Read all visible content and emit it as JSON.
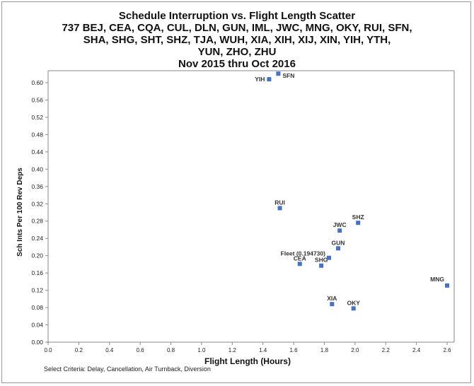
{
  "chart_data": {
    "type": "scatter",
    "title": [
      "Schedule Interruption vs. Flight Length Scatter",
      "737 BEJ, CEA, CQA, CUL, DLN, GUN, IML, JWC, MNG, OKY, RUI, SFN,",
      "SHA, SHG, SHT, SHZ, TJA, WUH, XIA, XIH, XIJ, XIN, YIH, YTH,",
      "YUN, ZHO, ZHU",
      "Nov 2015 thru Oct 2016"
    ],
    "xlabel": "Flight Length (Hours)",
    "ylabel": "Sch Ints Per 100 Rev Deps",
    "xlim": [
      0,
      2.6
    ],
    "ylim": [
      0,
      0.62
    ],
    "xticks": [
      "0.0",
      "0.2",
      "0.4",
      "0.6",
      "0.8",
      "1.0",
      "1.2",
      "1.4",
      "1.6",
      "1.8",
      "2.0",
      "2.2",
      "2.4",
      "2.6"
    ],
    "yticks": [
      "0.00",
      "0.04",
      "0.08",
      "0.12",
      "0.16",
      "0.20",
      "0.24",
      "0.28",
      "0.32",
      "0.36",
      "0.40",
      "0.44",
      "0.48",
      "0.52",
      "0.56",
      "0.60"
    ],
    "grid": false,
    "marker_color": "#4472c4",
    "points": [
      {
        "label": "YIH",
        "x": 1.44,
        "y": 0.608
      },
      {
        "label": "SFN",
        "x": 1.5,
        "y": 0.621
      },
      {
        "label": "RUI",
        "x": 1.51,
        "y": 0.31
      },
      {
        "label": "CEA",
        "x": 1.64,
        "y": 0.181
      },
      {
        "label": "SHG",
        "x": 1.78,
        "y": 0.177
      },
      {
        "label": "Fleet (0.194730)",
        "x": 1.83,
        "y": 0.195
      },
      {
        "label": "GUN",
        "x": 1.89,
        "y": 0.217
      },
      {
        "label": "JWC",
        "x": 1.9,
        "y": 0.258
      },
      {
        "label": "SHZ",
        "x": 2.02,
        "y": 0.276
      },
      {
        "label": "MNG",
        "x": 2.6,
        "y": 0.131
      },
      {
        "label": "XIA",
        "x": 1.85,
        "y": 0.088
      },
      {
        "label": "OKY",
        "x": 1.99,
        "y": 0.078
      }
    ],
    "footnote": "Select Criteria: Delay, Cancellation, Air Turnback, Diversion"
  }
}
